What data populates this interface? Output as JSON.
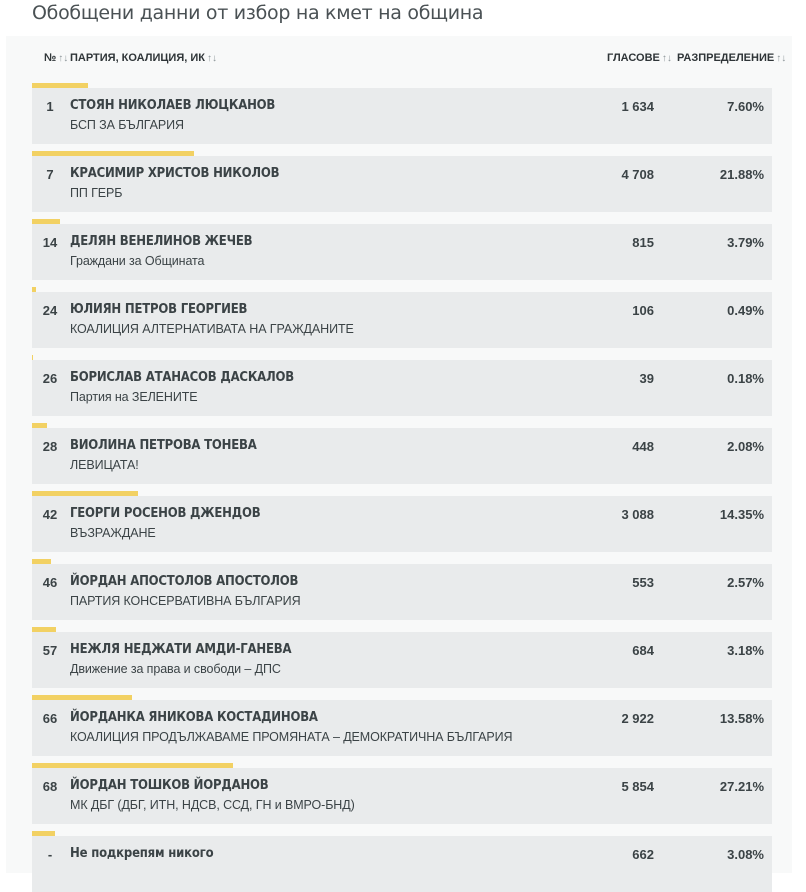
{
  "title": "Обобщени данни от избор на кмет на община",
  "header": {
    "num": "№",
    "party": "ПАРТИЯ, КОАЛИЦИЯ, ИК",
    "votes": "ГЛАСОВЕ",
    "distribution": "РАЗПРЕДЕЛЕНИЕ"
  },
  "colors": {
    "bar": "#f2d163",
    "row": "#e9ebec"
  },
  "rows": [
    {
      "num": "1",
      "name": "СТОЯН НИКОЛАЕВ ЛЮЦКАНОВ",
      "party": "БСП ЗА БЪЛГАРИЯ",
      "votes": "1 634",
      "pct": "7.60%",
      "share": 7.6
    },
    {
      "num": "7",
      "name": "КРАСИМИР ХРИСТОВ НИКОЛОВ",
      "party": "ПП ГЕРБ",
      "votes": "4 708",
      "pct": "21.88%",
      "share": 21.88
    },
    {
      "num": "14",
      "name": "ДЕЛЯН ВЕНЕЛИНОВ ЖЕЧЕВ",
      "party": "Граждани за Общината",
      "votes": "815",
      "pct": "3.79%",
      "share": 3.79
    },
    {
      "num": "24",
      "name": "ЮЛИЯН ПЕТРОВ ГЕОРГИЕВ",
      "party": "КОАЛИЦИЯ АЛТЕРНАТИВАТА НА ГРАЖДАНИТЕ",
      "votes": "106",
      "pct": "0.49%",
      "share": 0.49
    },
    {
      "num": "26",
      "name": "БОРИСЛАВ АТАНАСОВ ДАСКАЛОВ",
      "party": "Партия на ЗЕЛЕНИТЕ",
      "votes": "39",
      "pct": "0.18%",
      "share": 0.18
    },
    {
      "num": "28",
      "name": "ВИОЛИНА ПЕТРОВА ТОНЕВА",
      "party": "ЛЕВИЦАТА!",
      "votes": "448",
      "pct": "2.08%",
      "share": 2.08
    },
    {
      "num": "42",
      "name": "ГЕОРГИ РОСЕНОВ ДЖЕНДОВ",
      "party": "ВЪЗРАЖДАНЕ",
      "votes": "3 088",
      "pct": "14.35%",
      "share": 14.35
    },
    {
      "num": "46",
      "name": "ЙОРДАН АПОСТОЛОВ АПОСТОЛОВ",
      "party": "ПАРТИЯ КОНСЕРВАТИВНА БЪЛГАРИЯ",
      "votes": "553",
      "pct": "2.57%",
      "share": 2.57
    },
    {
      "num": "57",
      "name": "НЕЖЛЯ НЕДЖАТИ АМДИ-ГАНЕВА",
      "party": "Движение за права и свободи – ДПС",
      "votes": "684",
      "pct": "3.18%",
      "share": 3.18
    },
    {
      "num": "66",
      "name": "ЙОРДАНКА ЯНИКОВА КОСТАДИНОВА",
      "party": "КОАЛИЦИЯ ПРОДЪЛЖАВАМЕ ПРОМЯНАТА – ДЕМОКРАТИЧНА БЪЛГАРИЯ",
      "votes": "2 922",
      "pct": "13.58%",
      "share": 13.58
    },
    {
      "num": "68",
      "name": "ЙОРДАН ТОШКОВ ЙОРДАНОВ",
      "party": "МК ДБГ (ДБГ, ИТН, НДСВ, ССД, ГН и ВМРО-БНД)",
      "votes": "5 854",
      "pct": "27.21%",
      "share": 27.21
    },
    {
      "num": "-",
      "name": "Не подкрепям никого",
      "party": "",
      "votes": "662",
      "pct": "3.08%",
      "share": 3.08
    }
  ]
}
